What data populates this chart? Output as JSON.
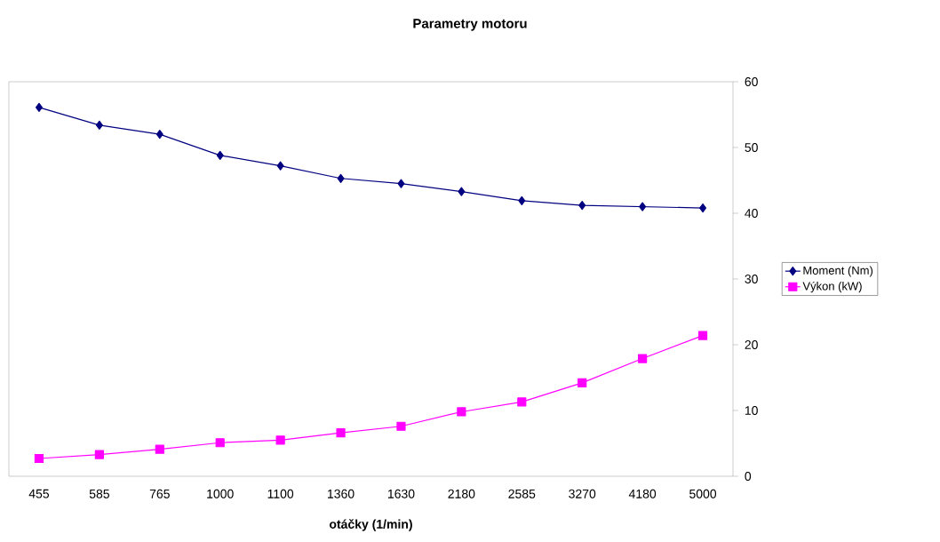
{
  "chart_data": {
    "type": "line",
    "title": "Parametry motoru",
    "xlabel": "otáčky (1/min)",
    "categories": [
      "455",
      "585",
      "765",
      "1000",
      "1100",
      "1360",
      "1630",
      "2180",
      "2585",
      "3270",
      "4180",
      "5000"
    ],
    "series": [
      {
        "name": "Moment (Nm)",
        "color": "#000080",
        "marker": "diamond",
        "values": [
          56.1,
          53.4,
          52.0,
          48.8,
          47.2,
          45.3,
          44.5,
          43.3,
          41.9,
          41.2,
          41.0,
          40.8
        ]
      },
      {
        "name": "Výkon (kW)",
        "color": "#ff00ff",
        "marker": "square",
        "values": [
          2.7,
          3.3,
          4.1,
          5.1,
          5.5,
          6.6,
          7.6,
          9.8,
          11.3,
          14.2,
          17.9,
          21.4
        ]
      }
    ],
    "ylim": [
      0,
      60
    ],
    "yticks": [
      0,
      10,
      20,
      30,
      40,
      50,
      60
    ],
    "legend": "right",
    "grid": false
  }
}
